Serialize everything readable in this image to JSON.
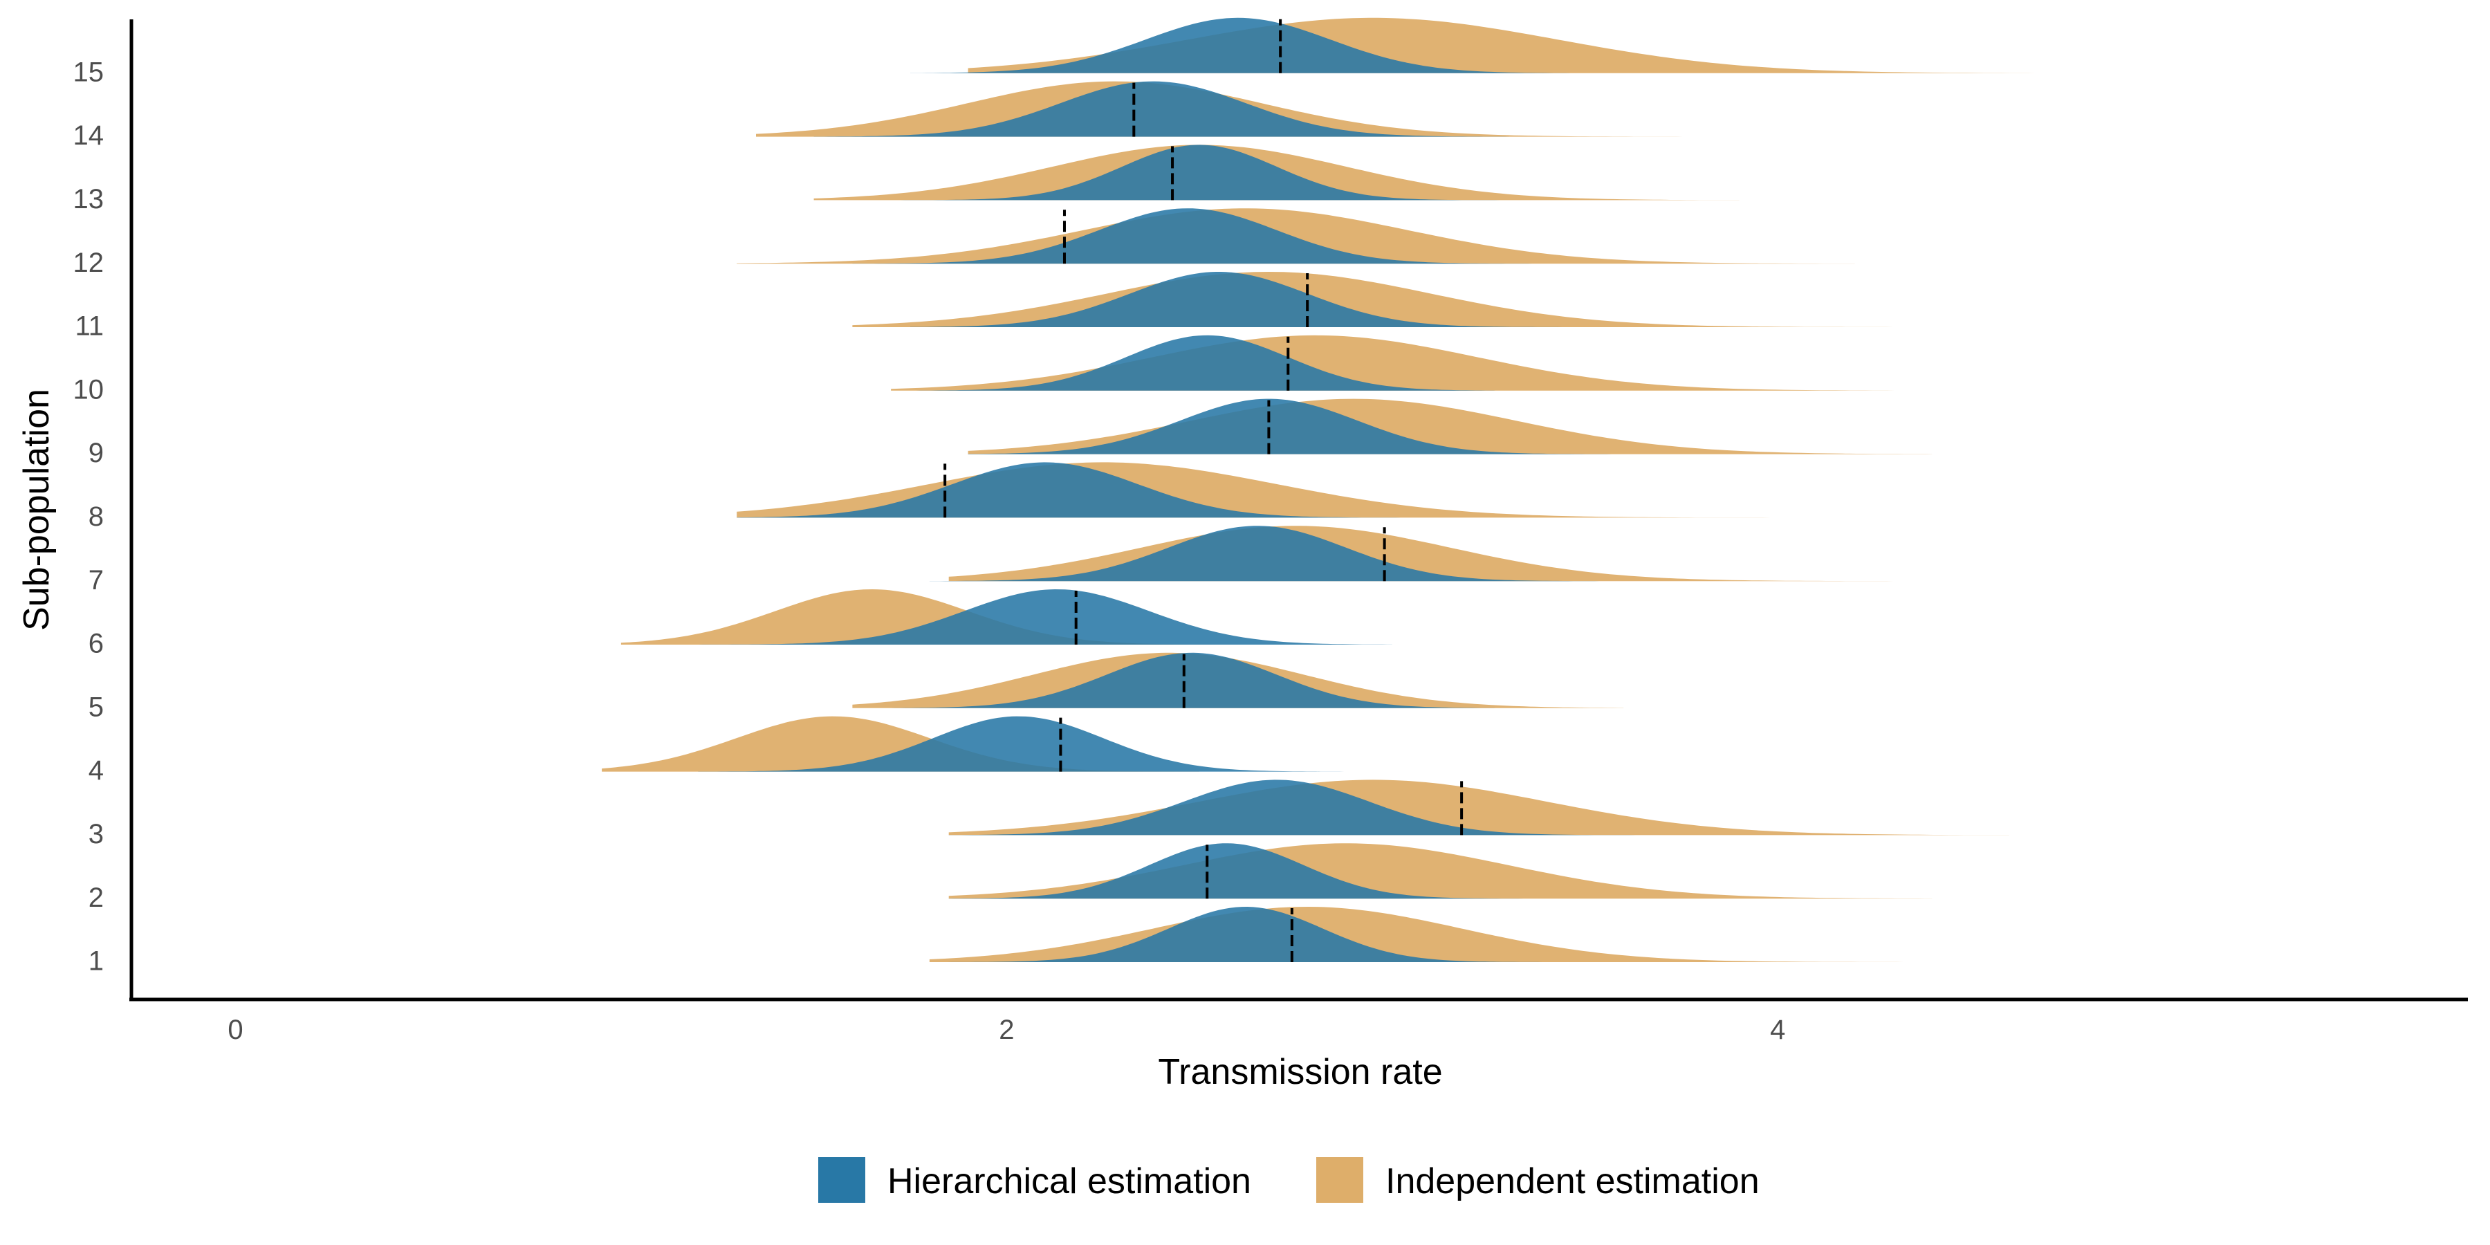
{
  "chart_data": {
    "type": "ridgeline",
    "xlabel": "Transmission rate",
    "ylabel": "Sub-population",
    "xlim": [
      -0.27,
      5.79
    ],
    "x_ticks": [
      0,
      2,
      4
    ],
    "categories": [
      "1",
      "2",
      "3",
      "4",
      "5",
      "6",
      "7",
      "8",
      "9",
      "10",
      "11",
      "12",
      "13",
      "14",
      "15"
    ],
    "grid": false,
    "legend_position": "bottom",
    "series": [
      {
        "name": "Hierarchical estimation",
        "color": "#2878a6",
        "density": [
          {
            "mean": 2.62,
            "sd": 0.2,
            "range": [
              1.8,
              3.9
            ]
          },
          {
            "mean": 2.57,
            "sd": 0.2,
            "range": [
              1.85,
              3.8
            ]
          },
          {
            "mean": 2.7,
            "sd": 0.24,
            "range": [
              1.85,
              4.0
            ]
          },
          {
            "mean": 2.03,
            "sd": 0.22,
            "range": [
              1.2,
              2.9
            ]
          },
          {
            "mean": 2.48,
            "sd": 0.22,
            "range": [
              1.7,
              3.5
            ]
          },
          {
            "mean": 2.13,
            "sd": 0.24,
            "range": [
              1.2,
              3.0
            ]
          },
          {
            "mean": 2.65,
            "sd": 0.23,
            "range": [
              1.8,
              3.7
            ]
          },
          {
            "mean": 2.1,
            "sd": 0.24,
            "range": [
              1.3,
              3.1
            ]
          },
          {
            "mean": 2.68,
            "sd": 0.23,
            "range": [
              1.9,
              3.8
            ]
          },
          {
            "mean": 2.52,
            "sd": 0.21,
            "range": [
              1.7,
              3.5
            ]
          },
          {
            "mean": 2.55,
            "sd": 0.23,
            "range": [
              1.75,
              3.6
            ]
          },
          {
            "mean": 2.47,
            "sd": 0.23,
            "range": [
              1.6,
              3.5
            ]
          },
          {
            "mean": 2.5,
            "sd": 0.2,
            "range": [
              1.7,
              3.4
            ]
          },
          {
            "mean": 2.38,
            "sd": 0.24,
            "range": [
              1.5,
              3.4
            ]
          },
          {
            "mean": 2.6,
            "sd": 0.24,
            "range": [
              1.75,
              3.8
            ]
          }
        ]
      },
      {
        "name": "Independent estimation",
        "color": "#deae6a",
        "density": [
          {
            "mean": 2.78,
            "sd": 0.4,
            "range": [
              1.8,
              4.5
            ]
          },
          {
            "mean": 2.88,
            "sd": 0.42,
            "range": [
              1.85,
              4.4
            ]
          },
          {
            "mean": 2.95,
            "sd": 0.45,
            "range": [
              1.85,
              4.6
            ]
          },
          {
            "mean": 1.55,
            "sd": 0.25,
            "range": [
              0.95,
              2.5
            ]
          },
          {
            "mean": 2.42,
            "sd": 0.35,
            "range": [
              1.6,
              3.6
            ]
          },
          {
            "mean": 1.65,
            "sd": 0.25,
            "range": [
              1.0,
              2.6
            ]
          },
          {
            "mean": 2.75,
            "sd": 0.4,
            "range": [
              1.85,
              4.3
            ]
          },
          {
            "mean": 2.25,
            "sd": 0.45,
            "range": [
              1.3,
              4.0
            ]
          },
          {
            "mean": 2.9,
            "sd": 0.42,
            "range": [
              1.9,
              4.4
            ]
          },
          {
            "mean": 2.8,
            "sd": 0.42,
            "range": [
              1.7,
              4.4
            ]
          },
          {
            "mean": 2.68,
            "sd": 0.42,
            "range": [
              1.6,
              4.3
            ]
          },
          {
            "mean": 2.62,
            "sd": 0.42,
            "range": [
              1.3,
              4.2
            ]
          },
          {
            "mean": 2.5,
            "sd": 0.38,
            "range": [
              1.5,
              3.9
            ]
          },
          {
            "mean": 2.28,
            "sd": 0.38,
            "range": [
              1.35,
              3.9
            ]
          },
          {
            "mean": 2.95,
            "sd": 0.48,
            "range": [
              1.9,
              5.0
            ]
          }
        ]
      }
    ],
    "reference_lines": {
      "style": "dashed vertical",
      "color": "#000000",
      "values": [
        2.74,
        2.52,
        3.18,
        2.14,
        2.46,
        2.18,
        2.98,
        1.84,
        2.68,
        2.73,
        2.78,
        2.15,
        2.43,
        2.33,
        2.71
      ]
    }
  }
}
